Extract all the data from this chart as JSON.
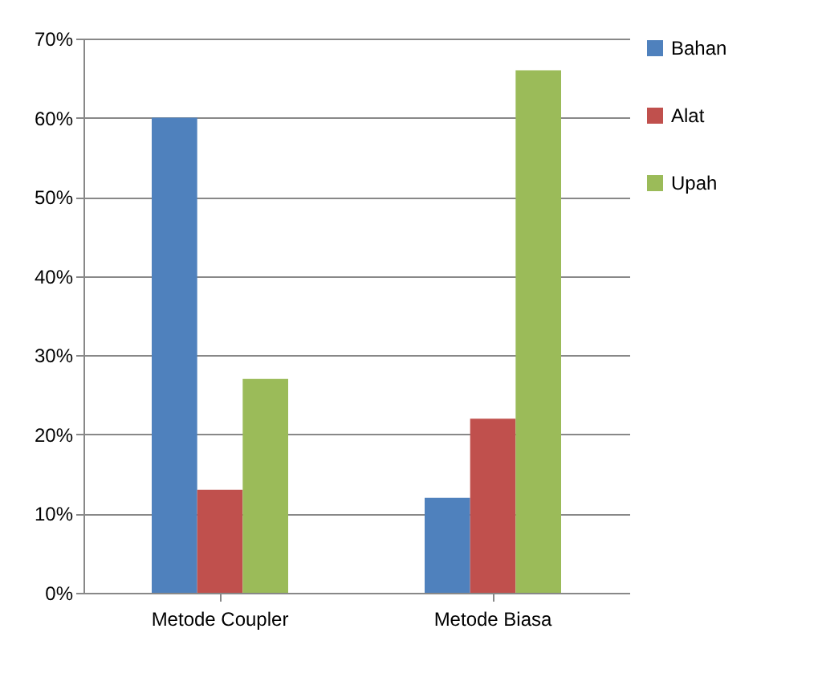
{
  "chart_data": {
    "type": "bar",
    "categories": [
      "Metode Coupler",
      "Metode Biasa"
    ],
    "series": [
      {
        "name": "Bahan",
        "color": "#4f81bd",
        "values": [
          60,
          12
        ]
      },
      {
        "name": "Alat",
        "color": "#c0504d",
        "values": [
          13,
          22
        ]
      },
      {
        "name": "Upah",
        "color": "#9bbb59",
        "values": [
          27,
          66
        ]
      }
    ],
    "ylim": [
      0,
      70
    ],
    "yticks": [
      {
        "value": 0,
        "label": "0%"
      },
      {
        "value": 10,
        "label": "10%"
      },
      {
        "value": 20,
        "label": "20%"
      },
      {
        "value": 30,
        "label": "30%"
      },
      {
        "value": 40,
        "label": "40%"
      },
      {
        "value": 50,
        "label": "50%"
      },
      {
        "value": 60,
        "label": "60%"
      },
      {
        "value": 70,
        "label": "70%"
      }
    ],
    "grid": "y",
    "legend": "right"
  }
}
